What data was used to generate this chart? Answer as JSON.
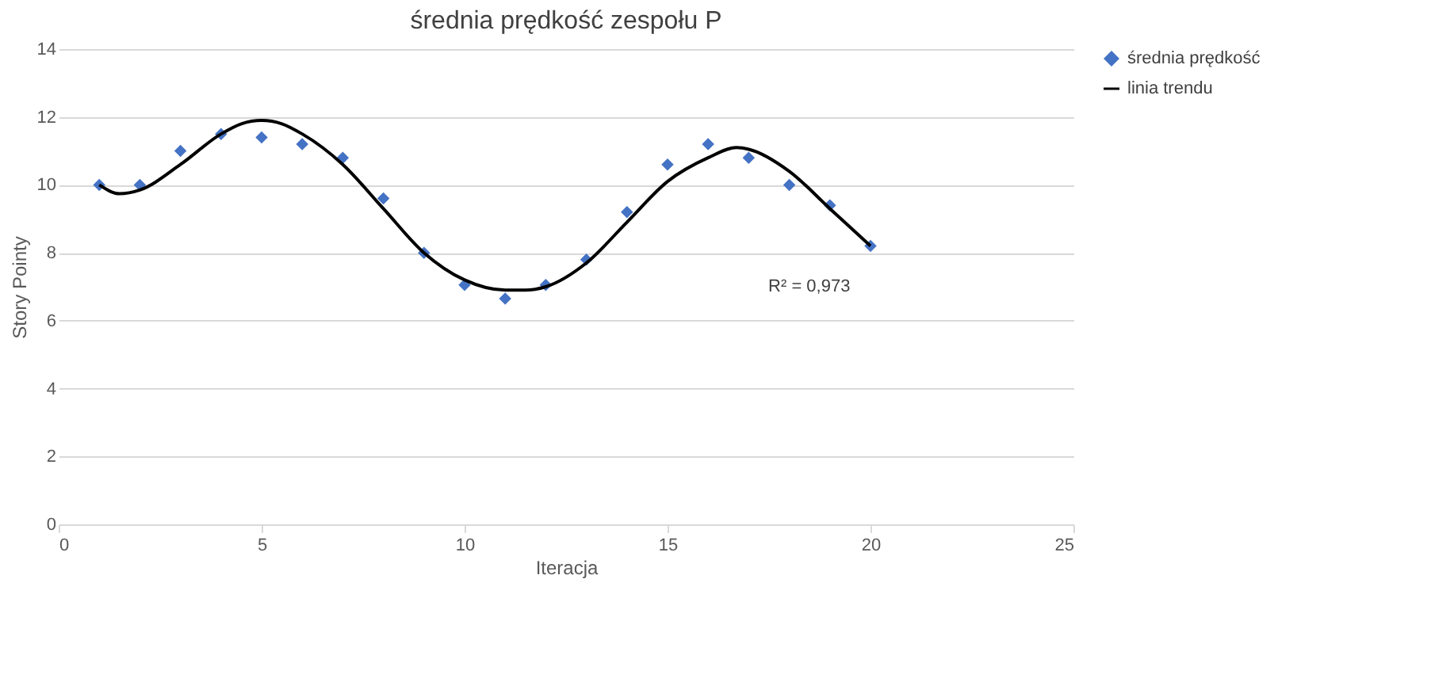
{
  "chart_data": {
    "type": "scatter",
    "title": "średnia prędkość zespołu P",
    "xlabel": "Iteracja",
    "ylabel": "Story Pointy",
    "xlim": [
      0,
      25
    ],
    "xticks": [
      0,
      5,
      10,
      15,
      20,
      25
    ],
    "ylim": [
      0,
      14
    ],
    "yticks": [
      0,
      2,
      4,
      6,
      8,
      10,
      12,
      14
    ],
    "grid": "y",
    "legend": "right",
    "x": [
      1,
      2,
      3,
      4,
      5,
      6,
      7,
      8,
      9,
      10,
      11,
      12,
      13,
      14,
      15,
      16,
      17,
      18,
      19,
      20
    ],
    "series": [
      {
        "name": "średnia prędkość",
        "marker": "diamond",
        "color": "#4472c4",
        "values": [
          10,
          10,
          11.0,
          11.5,
          11.4,
          11.2,
          10.8,
          9.6,
          8.0,
          7.05,
          6.65,
          7.05,
          7.8,
          9.2,
          10.6,
          11.2,
          10.8,
          10.0,
          9.4,
          8.2
        ]
      },
      {
        "name": "linia trendu",
        "type": "line",
        "marker": "none",
        "color": "#000000",
        "line_style": "solid",
        "x": [
          1,
          1.5,
          2,
          3,
          4,
          4.5,
          5,
          5.5,
          6,
          7,
          8,
          9,
          10,
          11,
          11.5,
          12,
          13,
          14,
          15,
          16,
          16.7,
          17,
          18,
          19,
          20
        ],
        "values": [
          10.0,
          9.74,
          9.85,
          10.6,
          11.5,
          11.8,
          11.9,
          11.8,
          11.5,
          10.6,
          9.3,
          8.0,
          7.2,
          6.9,
          6.9,
          7.0,
          7.7,
          8.9,
          10.1,
          10.8,
          11.1,
          11.05,
          10.4,
          9.3,
          8.2
        ]
      }
    ],
    "annotations": [
      "R² = 0,973"
    ]
  }
}
